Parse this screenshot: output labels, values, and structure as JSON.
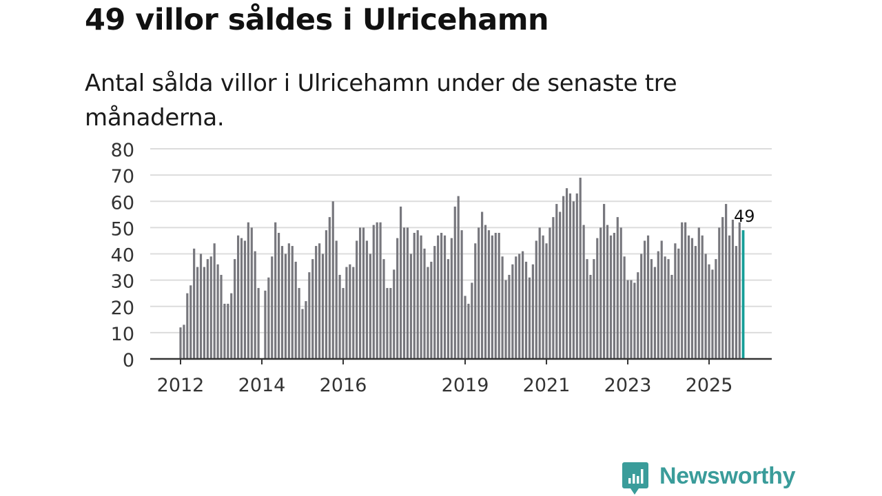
{
  "title": "49 villor såldes i Ulricehamn",
  "subtitle": "Antal sålda villor i Ulricehamn under de senaste tre månaderna.",
  "brand": {
    "name": "Newsworthy",
    "color": "#3a9c9a"
  },
  "colors": {
    "bar": "#77777d",
    "highlight": "#169e98",
    "grid": "#dcdcdc",
    "axis": "#333333"
  },
  "chart_data": {
    "type": "bar",
    "title": "Antal sålda villor i Ulricehamn",
    "xlabel": "",
    "ylabel": "",
    "ylim": [
      0,
      80
    ],
    "yticks": [
      0,
      10,
      20,
      30,
      40,
      50,
      60,
      70,
      80
    ],
    "xtick_labels": [
      "2012",
      "2014",
      "2016",
      "2019",
      "2021",
      "2023",
      "2025"
    ],
    "start": "2012-01",
    "frequency": "monthly",
    "values": [
      12,
      13,
      25,
      28,
      42,
      35,
      40,
      35,
      38,
      39,
      44,
      36,
      32,
      21,
      21,
      25,
      38,
      47,
      46,
      45,
      52,
      50,
      41,
      27,
      0,
      26,
      31,
      39,
      52,
      48,
      43,
      40,
      44,
      43,
      37,
      27,
      19,
      22,
      33,
      38,
      43,
      44,
      40,
      49,
      54,
      60,
      45,
      32,
      27,
      35,
      36,
      35,
      45,
      50,
      50,
      45,
      40,
      51,
      52,
      52,
      38,
      27,
      27,
      34,
      46,
      58,
      50,
      50,
      40,
      48,
      49,
      47,
      42,
      35,
      37,
      43,
      47,
      48,
      47,
      38,
      46,
      58,
      62,
      49,
      24,
      21,
      29,
      44,
      50,
      56,
      51,
      49,
      47,
      48,
      48,
      39,
      30,
      32,
      36,
      39,
      40,
      41,
      37,
      31,
      36,
      45,
      50,
      47,
      44,
      50,
      54,
      59,
      56,
      62,
      65,
      63,
      60,
      63,
      69,
      51,
      38,
      32,
      38,
      46,
      50,
      59,
      51,
      47,
      48,
      54,
      50,
      39,
      30,
      30,
      29,
      33,
      40,
      45,
      47,
      38,
      35,
      41,
      45,
      39,
      38,
      32,
      44,
      42,
      52,
      52,
      47,
      46,
      43,
      50,
      47,
      40,
      36,
      34,
      38,
      50,
      54,
      59,
      47,
      53,
      43,
      52,
      49
    ],
    "highlight_last": true,
    "data_labels": [
      {
        "label": "49"
      }
    ]
  }
}
